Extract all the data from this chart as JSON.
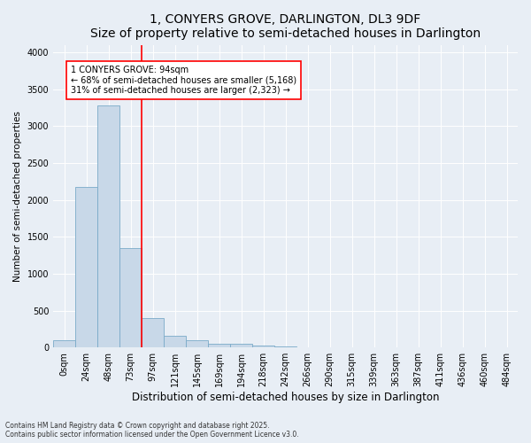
{
  "title": "1, CONYERS GROVE, DARLINGTON, DL3 9DF",
  "subtitle": "Size of property relative to semi-detached houses in Darlington",
  "xlabel": "Distribution of semi-detached houses by size in Darlington",
  "ylabel": "Number of semi-detached properties",
  "footer_line1": "Contains HM Land Registry data © Crown copyright and database right 2025.",
  "footer_line2": "Contains public sector information licensed under the Open Government Licence v3.0.",
  "bar_labels": [
    "0sqm",
    "24sqm",
    "48sqm",
    "73sqm",
    "97sqm",
    "121sqm",
    "145sqm",
    "169sqm",
    "194sqm",
    "218sqm",
    "242sqm",
    "266sqm",
    "290sqm",
    "315sqm",
    "339sqm",
    "363sqm",
    "387sqm",
    "411sqm",
    "436sqm",
    "460sqm",
    "484sqm"
  ],
  "bar_values": [
    100,
    2180,
    3280,
    1350,
    400,
    155,
    95,
    50,
    45,
    30,
    20,
    0,
    0,
    0,
    0,
    0,
    0,
    0,
    0,
    0,
    0
  ],
  "bar_color": "#c8d8e8",
  "bar_edgecolor": "#7aaac8",
  "vline_x_index": 4,
  "vline_color": "red",
  "annotation_title": "1 CONYERS GROVE: 94sqm",
  "annotation_line2": "← 68% of semi-detached houses are smaller (5,168)",
  "annotation_line3": "31% of semi-detached houses are larger (2,323) →",
  "annotation_box_color": "red",
  "ylim": [
    0,
    4100
  ],
  "yticks": [
    0,
    500,
    1000,
    1500,
    2000,
    2500,
    3000,
    3500,
    4000
  ],
  "bg_color": "#e8eef5",
  "title_fontsize": 10,
  "subtitle_fontsize": 9,
  "xlabel_fontsize": 8.5,
  "ylabel_fontsize": 7.5,
  "tick_fontsize": 7,
  "annotation_fontsize": 7,
  "footer_fontsize": 5.5
}
